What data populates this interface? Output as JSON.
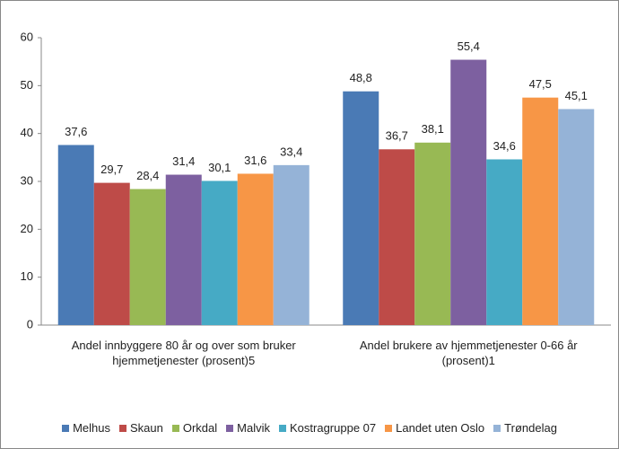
{
  "chart_data": {
    "type": "bar",
    "categories": [
      "Andel innbyggere 80 år og over som bruker hjemmetjenester (prosent)5",
      "Andel brukere av hjemmetjenester 0-66 år (prosent)1"
    ],
    "series": [
      {
        "name": "Melhus",
        "color": "#4a7ab5",
        "values": [
          37.6,
          48.8
        ],
        "value_labels": [
          "37,6",
          "48,8"
        ]
      },
      {
        "name": "Skaun",
        "color": "#be4b48",
        "values": [
          29.7,
          36.7
        ],
        "value_labels": [
          "29,7",
          "36,7"
        ]
      },
      {
        "name": "Orkdal",
        "color": "#98b954",
        "values": [
          28.4,
          38.1
        ],
        "value_labels": [
          "28,4",
          "38,1"
        ]
      },
      {
        "name": "Malvik",
        "color": "#7d60a0",
        "values": [
          31.4,
          55.4
        ],
        "value_labels": [
          "31,4",
          "55,4"
        ]
      },
      {
        "name": "Kostragruppe 07",
        "color": "#46aac5",
        "values": [
          30.1,
          34.6
        ],
        "value_labels": [
          "30,1",
          "34,6"
        ]
      },
      {
        "name": "Landet uten Oslo",
        "color": "#f79646",
        "values": [
          31.6,
          47.5
        ],
        "value_labels": [
          "31,6",
          "47,5"
        ]
      },
      {
        "name": "Trøndelag",
        "color": "#95b3d7",
        "values": [
          33.4,
          45.1
        ],
        "value_labels": [
          "33,4",
          "45,1"
        ]
      }
    ],
    "ylim": [
      0,
      60
    ],
    "yticks": [
      0,
      10,
      20,
      30,
      40,
      50,
      60
    ],
    "grid": false,
    "legend": "bottom"
  }
}
